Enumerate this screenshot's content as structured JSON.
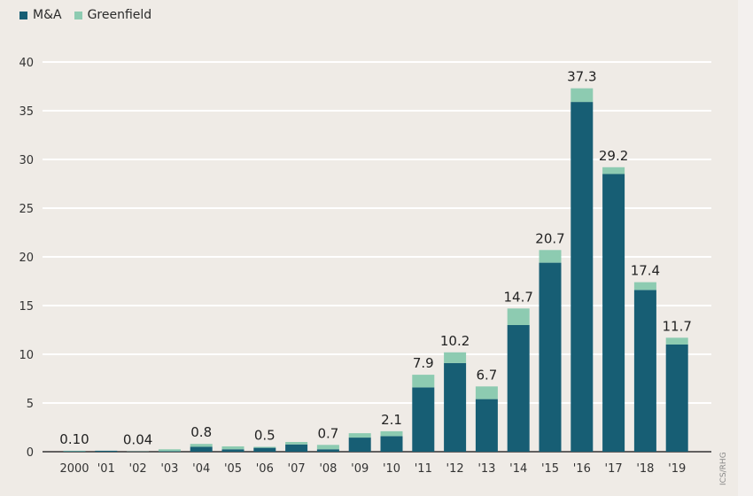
{
  "chart_data": {
    "type": "bar",
    "stacked": true,
    "categories": [
      "2000",
      "'01",
      "'02",
      "'03",
      "'04",
      "'05",
      "'06",
      "'07",
      "'08",
      "'09",
      "'10",
      "'11",
      "'12",
      "'13",
      "'14",
      "'15",
      "'16",
      "'17",
      "'18",
      "'19"
    ],
    "series": [
      {
        "name": "M&A",
        "color": "#175e74",
        "values": [
          0.05,
          0.1,
          0.02,
          0.05,
          0.5,
          0.25,
          0.4,
          0.75,
          0.25,
          1.45,
          1.6,
          6.6,
          9.1,
          5.4,
          13.0,
          19.4,
          35.9,
          28.5,
          16.6,
          11.0
        ]
      },
      {
        "name": "Greenfield",
        "color": "#8dcbb1",
        "values": [
          0.05,
          0.0,
          0.02,
          0.2,
          0.3,
          0.3,
          0.1,
          0.25,
          0.45,
          0.45,
          0.5,
          1.3,
          1.1,
          1.3,
          1.7,
          1.3,
          1.4,
          0.7,
          0.8,
          0.7
        ]
      }
    ],
    "data_labels": [
      "0.10",
      "",
      "0.04",
      "",
      "0.8",
      "",
      "0.5",
      "",
      "0.7",
      "",
      "2.1",
      "7.9",
      "10.2",
      "6.7",
      "14.7",
      "20.7",
      "37.3",
      "29.2",
      "17.4",
      "11.7"
    ],
    "y_ticks": [
      "0",
      "5",
      "10",
      "15",
      "20",
      "25",
      "30",
      "35",
      "40"
    ],
    "ylim": [
      0,
      40
    ],
    "grid": true,
    "legend_position": "top-left",
    "source": "ICS/RHG"
  }
}
